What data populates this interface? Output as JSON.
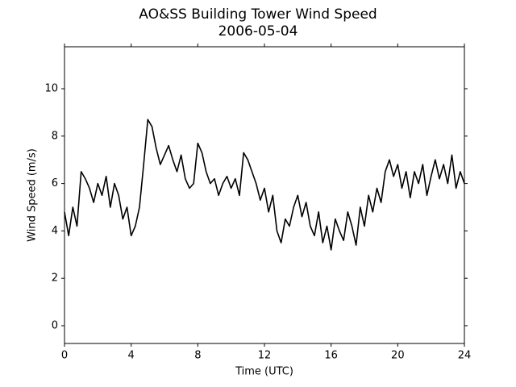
{
  "chart_data": {
    "type": "line",
    "title": "AO&SS Building Tower Wind Speed",
    "subtitle": "2006-05-04",
    "xlabel": "Time (UTC)",
    "ylabel": "Wind Speed (m/s)",
    "color": "#000000",
    "x": [
      0,
      0.25,
      0.5,
      0.75,
      1,
      1.25,
      1.5,
      1.75,
      2,
      2.25,
      2.5,
      2.75,
      3,
      3.25,
      3.5,
      3.75,
      4,
      4.25,
      4.5,
      4.75,
      5,
      5.25,
      5.5,
      5.75,
      6,
      6.25,
      6.5,
      6.75,
      7,
      7.25,
      7.5,
      7.75,
      8,
      8.25,
      8.5,
      8.75,
      9,
      9.25,
      9.5,
      9.75,
      10,
      10.25,
      10.5,
      10.75,
      11,
      11.25,
      11.5,
      11.75,
      12,
      12.25,
      12.5,
      12.75,
      13,
      13.25,
      13.5,
      13.75,
      14,
      14.25,
      14.5,
      14.75,
      15,
      15.25,
      15.5,
      15.75,
      16,
      16.25,
      16.5,
      16.75,
      17,
      17.25,
      17.5,
      17.75,
      18,
      18.25,
      18.5,
      18.75,
      19,
      19.25,
      19.5,
      19.75,
      20,
      20.25,
      20.5,
      20.75,
      21,
      21.25,
      21.5,
      21.75,
      22,
      22.25,
      22.5,
      22.75,
      23,
      23.25,
      23.5,
      23.75,
      24
    ],
    "values": [
      4.8,
      3.8,
      5.0,
      4.2,
      6.5,
      6.2,
      5.8,
      5.2,
      6.0,
      5.5,
      6.3,
      5.0,
      6.0,
      5.5,
      4.5,
      5.0,
      3.8,
      4.2,
      5.0,
      6.8,
      8.7,
      8.4,
      7.5,
      6.8,
      7.2,
      7.6,
      7.0,
      6.5,
      7.2,
      6.2,
      5.8,
      6.0,
      7.7,
      7.3,
      6.5,
      6.0,
      6.2,
      5.5,
      6.0,
      6.3,
      5.8,
      6.2,
      5.5,
      7.3,
      7.0,
      6.5,
      6.0,
      5.3,
      5.8,
      4.8,
      5.5,
      4.0,
      3.5,
      4.5,
      4.2,
      5.0,
      5.5,
      4.6,
      5.2,
      4.2,
      3.8,
      4.8,
      3.5,
      4.2,
      3.2,
      4.5,
      4.0,
      3.6,
      4.8,
      4.2,
      3.4,
      5.0,
      4.2,
      5.5,
      4.8,
      5.8,
      5.2,
      6.5,
      7.0,
      6.3,
      6.8,
      5.8,
      6.5,
      5.4,
      6.5,
      6.0,
      6.8,
      5.5,
      6.3,
      7.0,
      6.2,
      6.8,
      6.0,
      7.2,
      5.8,
      6.5,
      6.0
    ],
    "xlim": [
      0,
      24
    ],
    "xticks": [
      0,
      4,
      8,
      12,
      16,
      20,
      24
    ],
    "ylim": [
      -0.75,
      11.77
    ],
    "yticks": [
      0,
      2,
      4,
      6,
      8,
      10
    ],
    "grid": false
  }
}
